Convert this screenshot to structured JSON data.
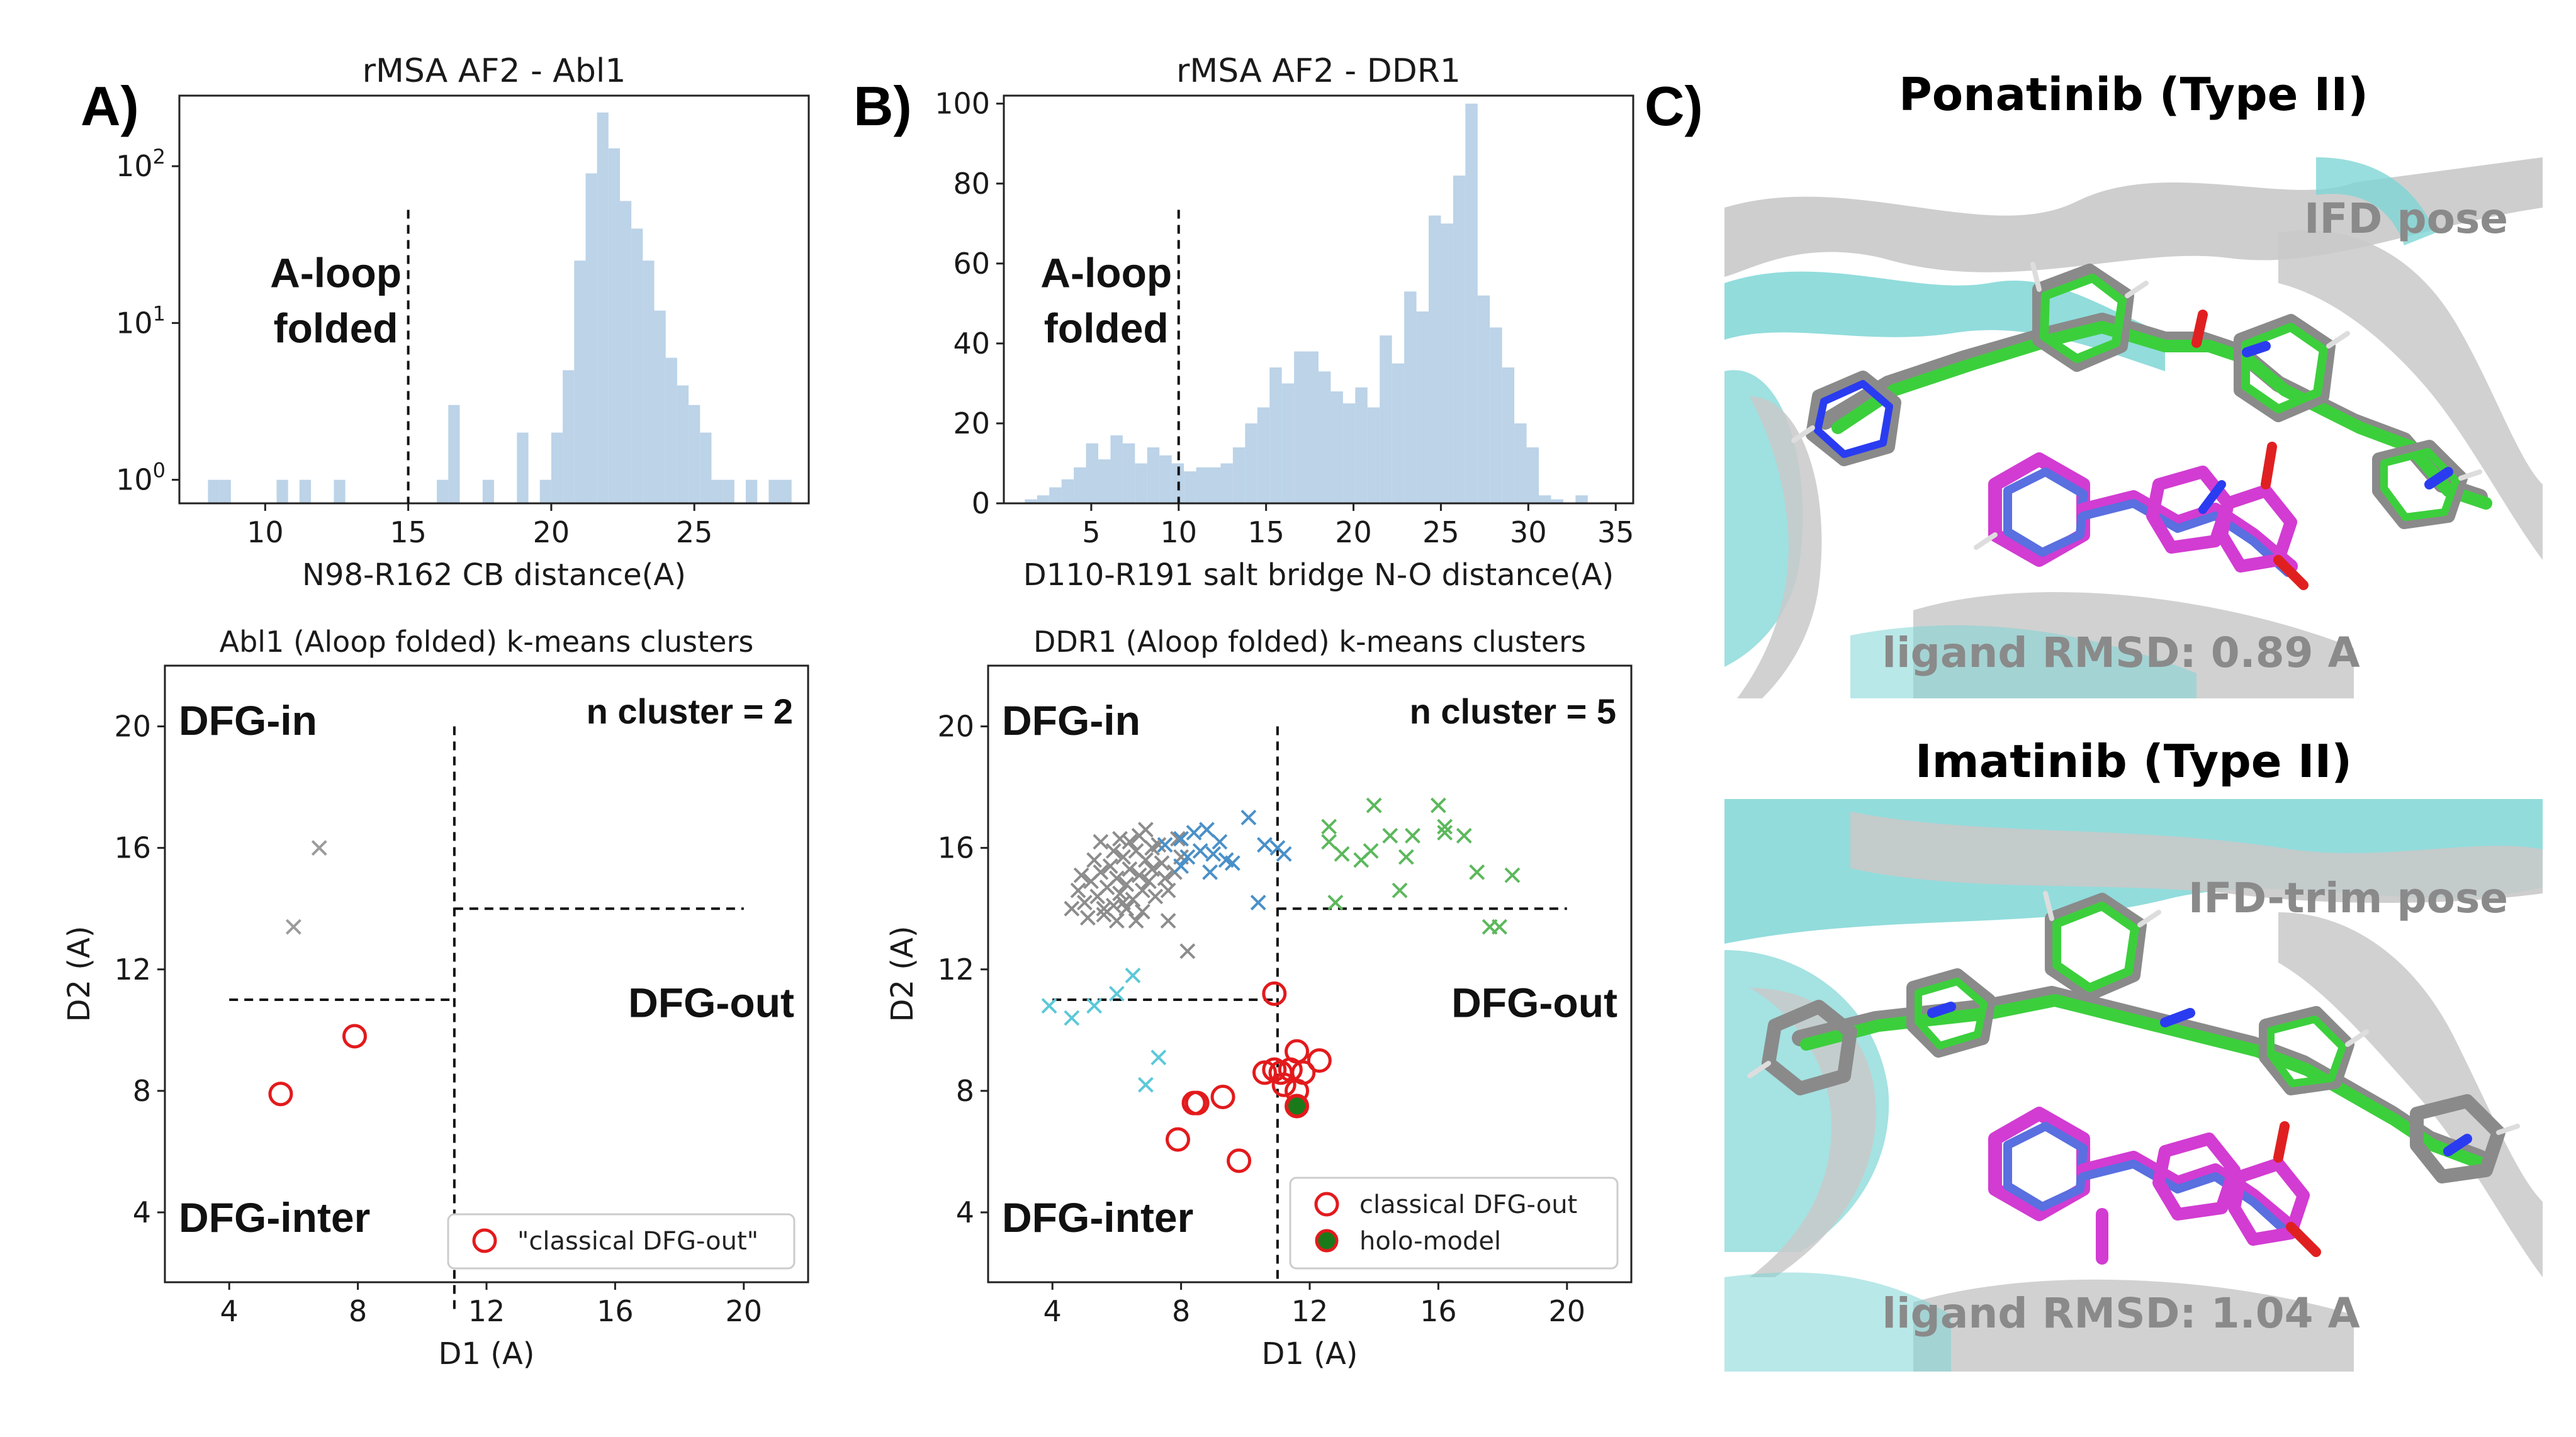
{
  "panels": {
    "a_label": "A)",
    "b_label": "B)",
    "c_label": "C)"
  },
  "chart_data": [
    {
      "id": "hist_abl1",
      "type": "bar",
      "title": "rMSA AF2 - Abl1",
      "xlabel": "N98-R162 CB distance(A)",
      "ylabel": "",
      "yscale": "log",
      "xlim": [
        7,
        29
      ],
      "ylim_log10": [
        -0.15,
        2.45
      ],
      "xticks": [
        "10",
        "15",
        "20",
        "25"
      ],
      "xtick_values": [
        10,
        15,
        20,
        25
      ],
      "yticks": [
        {
          "base": "10",
          "exp": "0",
          "value": 0
        },
        {
          "base": "10",
          "exp": "1",
          "value": 1
        },
        {
          "base": "10",
          "exp": "2",
          "value": 2
        }
      ],
      "bar_color": "#bcd3e8",
      "threshold": 15,
      "annotation": [
        "A-loop",
        "folded"
      ],
      "bin_width": 0.4,
      "bins": [
        {
          "x": 8.0,
          "y": 1
        },
        {
          "x": 8.4,
          "y": 1
        },
        {
          "x": 10.4,
          "y": 1
        },
        {
          "x": 11.2,
          "y": 1
        },
        {
          "x": 12.4,
          "y": 1
        },
        {
          "x": 16.0,
          "y": 1
        },
        {
          "x": 16.4,
          "y": 3
        },
        {
          "x": 17.6,
          "y": 1
        },
        {
          "x": 18.8,
          "y": 2
        },
        {
          "x": 19.6,
          "y": 1
        },
        {
          "x": 20.0,
          "y": 2
        },
        {
          "x": 20.4,
          "y": 5
        },
        {
          "x": 20.8,
          "y": 25
        },
        {
          "x": 21.2,
          "y": 90
        },
        {
          "x": 21.6,
          "y": 220
        },
        {
          "x": 22.0,
          "y": 130
        },
        {
          "x": 22.4,
          "y": 60
        },
        {
          "x": 22.8,
          "y": 40
        },
        {
          "x": 23.2,
          "y": 25
        },
        {
          "x": 23.6,
          "y": 12
        },
        {
          "x": 24.0,
          "y": 6
        },
        {
          "x": 24.4,
          "y": 4
        },
        {
          "x": 24.8,
          "y": 3
        },
        {
          "x": 25.2,
          "y": 2
        },
        {
          "x": 25.6,
          "y": 1
        },
        {
          "x": 26.0,
          "y": 1
        },
        {
          "x": 26.8,
          "y": 1
        },
        {
          "x": 27.6,
          "y": 1
        },
        {
          "x": 28.0,
          "y": 1
        }
      ]
    },
    {
      "id": "hist_ddr1",
      "type": "bar",
      "title": "rMSA AF2 - DDR1",
      "xlabel": "D110-R191 salt bridge N-O distance(A)",
      "ylabel": "",
      "xlim": [
        0,
        36
      ],
      "ylim": [
        0,
        102
      ],
      "xticks": [
        "5",
        "10",
        "15",
        "20",
        "25",
        "30",
        "35"
      ],
      "xtick_values": [
        5,
        10,
        15,
        20,
        25,
        30,
        35
      ],
      "yticks": [
        "0",
        "20",
        "40",
        "60",
        "80",
        "100"
      ],
      "ytick_values": [
        0,
        20,
        40,
        60,
        80,
        100
      ],
      "bar_color": "#bcd3e8",
      "threshold": 10,
      "annotation": [
        "A-loop",
        "folded"
      ],
      "bin_width": 0.7,
      "bins": [
        {
          "x": 1.2,
          "y": 1
        },
        {
          "x": 1.9,
          "y": 2
        },
        {
          "x": 2.6,
          "y": 4
        },
        {
          "x": 3.3,
          "y": 6
        },
        {
          "x": 4.0,
          "y": 9
        },
        {
          "x": 4.7,
          "y": 15
        },
        {
          "x": 5.4,
          "y": 11
        },
        {
          "x": 6.1,
          "y": 17
        },
        {
          "x": 6.8,
          "y": 15
        },
        {
          "x": 7.5,
          "y": 10
        },
        {
          "x": 8.2,
          "y": 14
        },
        {
          "x": 8.9,
          "y": 12
        },
        {
          "x": 9.6,
          "y": 10
        },
        {
          "x": 10.3,
          "y": 8
        },
        {
          "x": 11.0,
          "y": 9
        },
        {
          "x": 11.7,
          "y": 9
        },
        {
          "x": 12.4,
          "y": 10
        },
        {
          "x": 13.1,
          "y": 14
        },
        {
          "x": 13.8,
          "y": 20
        },
        {
          "x": 14.5,
          "y": 24
        },
        {
          "x": 15.2,
          "y": 34
        },
        {
          "x": 15.9,
          "y": 30
        },
        {
          "x": 16.6,
          "y": 38
        },
        {
          "x": 17.3,
          "y": 38
        },
        {
          "x": 18.0,
          "y": 33
        },
        {
          "x": 18.7,
          "y": 28
        },
        {
          "x": 19.4,
          "y": 25
        },
        {
          "x": 20.1,
          "y": 29
        },
        {
          "x": 20.8,
          "y": 24
        },
        {
          "x": 21.5,
          "y": 42
        },
        {
          "x": 22.2,
          "y": 35
        },
        {
          "x": 22.9,
          "y": 53
        },
        {
          "x": 23.6,
          "y": 48
        },
        {
          "x": 24.3,
          "y": 72
        },
        {
          "x": 25.0,
          "y": 70
        },
        {
          "x": 25.7,
          "y": 82
        },
        {
          "x": 26.4,
          "y": 100
        },
        {
          "x": 27.1,
          "y": 52
        },
        {
          "x": 27.8,
          "y": 44
        },
        {
          "x": 28.5,
          "y": 34
        },
        {
          "x": 29.2,
          "y": 20
        },
        {
          "x": 29.9,
          "y": 14
        },
        {
          "x": 30.6,
          "y": 2
        },
        {
          "x": 31.3,
          "y": 1
        },
        {
          "x": 32.7,
          "y": 2
        }
      ]
    },
    {
      "id": "scatter_abl1",
      "type": "scatter",
      "title": "Abl1 (Aloop folded) k-means clusters",
      "xlabel": "D1 (A)",
      "ylabel": "D2 (A)",
      "xlim": [
        2,
        22
      ],
      "ylim": [
        1.7,
        22
      ],
      "xticks": [
        "4",
        "8",
        "12",
        "16",
        "20"
      ],
      "xtick_values": [
        4,
        8,
        12,
        16,
        20
      ],
      "yticks": [
        "4",
        "8",
        "12",
        "16",
        "20"
      ],
      "ytick_values": [
        4,
        8,
        12,
        16,
        20
      ],
      "n_cluster_label": "n cluster = 2",
      "regions": {
        "in": "DFG-in",
        "out": "DFG-out",
        "inter": "DFG-inter"
      },
      "dividers": {
        "vertical_x": 11,
        "vertical_y": [
          0.8,
          20
        ],
        "left_h": {
          "y": 11,
          "x": [
            4,
            11
          ]
        },
        "right_h": {
          "y": 14,
          "x": [
            11,
            20
          ]
        }
      },
      "series": [
        {
          "name": "cluster-gray",
          "marker": "x",
          "color": "#9b9b9b",
          "points": [
            [
              6.8,
              16
            ],
            [
              6.0,
              13.4
            ]
          ]
        },
        {
          "name": "\"classical DFG-out\"",
          "marker": "o",
          "color": "#e31a1c",
          "points": [
            [
              7.9,
              9.8
            ],
            [
              5.6,
              7.9
            ]
          ]
        }
      ],
      "legend": [
        {
          "label": "\"classical DFG-out\"",
          "marker": "o",
          "color": "#e31a1c"
        }
      ]
    },
    {
      "id": "scatter_ddr1",
      "type": "scatter",
      "title": "DDR1 (Aloop folded) k-means clusters",
      "xlabel": "D1 (A)",
      "ylabel": "D2 (A)",
      "xlim": [
        2,
        22
      ],
      "ylim": [
        1.7,
        22
      ],
      "xticks": [
        "4",
        "8",
        "12",
        "16",
        "20"
      ],
      "xtick_values": [
        4,
        8,
        12,
        16,
        20
      ],
      "yticks": [
        "4",
        "8",
        "12",
        "16",
        "20"
      ],
      "ytick_values": [
        4,
        8,
        12,
        16,
        20
      ],
      "n_cluster_label": "n cluster = 5",
      "regions": {
        "in": "DFG-in",
        "out": "DFG-out",
        "inter": "DFG-inter"
      },
      "dividers": {
        "vertical_x": 11,
        "vertical_y": [
          1.7,
          20
        ],
        "left_h": {
          "y": 11,
          "x": [
            4,
            11
          ]
        },
        "right_h": {
          "y": 14,
          "x": [
            11,
            20
          ]
        }
      },
      "series": [
        {
          "name": "cluster-gray",
          "marker": "x",
          "color": "#8c8c8c",
          "points": [
            [
              4.8,
              14.6
            ],
            [
              5.0,
              14.2
            ],
            [
              5.2,
              14.9
            ],
            [
              5.4,
              14.4
            ],
            [
              5.5,
              15.2
            ],
            [
              5.6,
              13.8
            ],
            [
              5.7,
              14.7
            ],
            [
              5.8,
              15.4
            ],
            [
              5.9,
              14.1
            ],
            [
              6.0,
              15.0
            ],
            [
              6.1,
              14.5
            ],
            [
              6.2,
              15.7
            ],
            [
              6.3,
              14.8
            ],
            [
              6.4,
              15.3
            ],
            [
              6.5,
              14.3
            ],
            [
              6.6,
              15.9
            ],
            [
              6.7,
              15.1
            ],
            [
              6.8,
              14.6
            ],
            [
              6.9,
              15.6
            ],
            [
              7.0,
              14.9
            ],
            [
              7.1,
              15.3
            ],
            [
              7.2,
              14.4
            ],
            [
              7.3,
              16.1
            ],
            [
              7.4,
              15.5
            ],
            [
              7.5,
              15.0
            ],
            [
              5.3,
              15.6
            ],
            [
              5.9,
              15.9
            ],
            [
              6.4,
              16.2
            ],
            [
              6.7,
              16.4
            ],
            [
              7.1,
              16.0
            ],
            [
              6.0,
              13.6
            ],
            [
              5.6,
              14.0
            ],
            [
              6.3,
              14.0
            ],
            [
              6.8,
              13.9
            ],
            [
              4.6,
              14.0
            ],
            [
              5.1,
              13.7
            ],
            [
              6.1,
              16.3
            ],
            [
              6.9,
              16.6
            ],
            [
              7.6,
              14.6
            ],
            [
              7.8,
              15.2
            ],
            [
              8.0,
              15.7
            ],
            [
              7.6,
              13.6
            ],
            [
              8.2,
              12.6
            ],
            [
              5.5,
              16.2
            ],
            [
              6.6,
              13.6
            ],
            [
              4.9,
              15.1
            ],
            [
              7.9,
              16.3
            ],
            [
              6.2,
              14.2
            ]
          ]
        },
        {
          "name": "cluster-blue",
          "marker": "x",
          "color": "#4a90c8",
          "points": [
            [
              7.5,
              16.1
            ],
            [
              8.0,
              16.3
            ],
            [
              8.4,
              16.5
            ],
            [
              8.8,
              16.6
            ],
            [
              8.2,
              15.7
            ],
            [
              8.6,
              15.9
            ],
            [
              9.0,
              15.8
            ],
            [
              9.4,
              15.6
            ],
            [
              8.9,
              15.2
            ],
            [
              9.6,
              15.5
            ],
            [
              10.1,
              17.0
            ],
            [
              10.6,
              16.1
            ],
            [
              11.2,
              15.8
            ],
            [
              11.0,
              16.0
            ],
            [
              10.4,
              14.2
            ],
            [
              8.0,
              15.4
            ],
            [
              9.2,
              16.2
            ]
          ]
        },
        {
          "name": "cluster-green",
          "marker": "x",
          "color": "#5cb85c",
          "points": [
            [
              12.6,
              16.7
            ],
            [
              13.0,
              15.8
            ],
            [
              13.6,
              15.6
            ],
            [
              14.0,
              17.4
            ],
            [
              14.5,
              16.4
            ],
            [
              15.2,
              16.4
            ],
            [
              16.0,
              17.4
            ],
            [
              16.2,
              16.5
            ],
            [
              16.8,
              16.4
            ],
            [
              15.0,
              15.7
            ],
            [
              13.9,
              15.9
            ],
            [
              14.8,
              14.6
            ],
            [
              17.2,
              15.2
            ],
            [
              18.3,
              15.1
            ],
            [
              17.6,
              13.4
            ],
            [
              17.9,
              13.4
            ],
            [
              12.6,
              16.2
            ],
            [
              12.8,
              14.2
            ],
            [
              16.2,
              16.7
            ]
          ]
        },
        {
          "name": "cluster-cyan",
          "marker": "x",
          "color": "#5cc8d8",
          "points": [
            [
              3.9,
              10.8
            ],
            [
              4.6,
              10.4
            ],
            [
              5.3,
              10.8
            ],
            [
              6.0,
              11.2
            ],
            [
              6.5,
              11.8
            ],
            [
              7.3,
              9.1
            ],
            [
              6.9,
              8.2
            ]
          ]
        },
        {
          "name": "classical DFG-out",
          "marker": "o",
          "color": "#e31a1c",
          "points": [
            [
              10.9,
              11.2
            ],
            [
              11.6,
              9.3
            ],
            [
              12.3,
              9.0
            ],
            [
              11.4,
              8.7
            ],
            [
              11.1,
              8.6
            ],
            [
              10.6,
              8.6
            ],
            [
              10.9,
              8.7
            ],
            [
              11.8,
              8.6
            ],
            [
              11.6,
              8.0
            ],
            [
              11.2,
              8.2
            ],
            [
              11.6,
              7.5
            ],
            [
              9.3,
              7.8
            ],
            [
              8.4,
              7.6
            ],
            [
              8.5,
              7.6
            ],
            [
              7.9,
              6.4
            ],
            [
              9.8,
              5.7
            ]
          ]
        },
        {
          "name": "holo-model",
          "marker": "o-filled",
          "color": "#e31a1c",
          "fill": "#1a7a1a",
          "points": [
            [
              11.6,
              7.5
            ]
          ]
        }
      ],
      "legend": [
        {
          "label": "classical DFG-out",
          "marker": "o",
          "color": "#e31a1c"
        },
        {
          "label": "holo-model",
          "marker": "o-filled",
          "color": "#e31a1c",
          "fill": "#1a7a1a"
        }
      ]
    }
  ],
  "structures": [
    {
      "title": "Ponatinib (Type II)",
      "pose": "IFD pose",
      "rmsd": "ligand RMSD: 0.89 A"
    },
    {
      "title": "Imatinib (Type II)",
      "pose": "IFD-trim pose",
      "rmsd": "ligand RMSD: 1.04 A"
    }
  ],
  "colors": {
    "protein_cyan": "#7fd6d6",
    "protein_gray": "#c8c8c8",
    "ligand_green": "#3ccf3c",
    "ligand_gray": "#8a8a8a",
    "ligand_magenta": "#d23cd2",
    "ligand_blue": "#5a6fe0",
    "nitrogen": "#2a3cf0",
    "oxygen": "#e02020"
  }
}
